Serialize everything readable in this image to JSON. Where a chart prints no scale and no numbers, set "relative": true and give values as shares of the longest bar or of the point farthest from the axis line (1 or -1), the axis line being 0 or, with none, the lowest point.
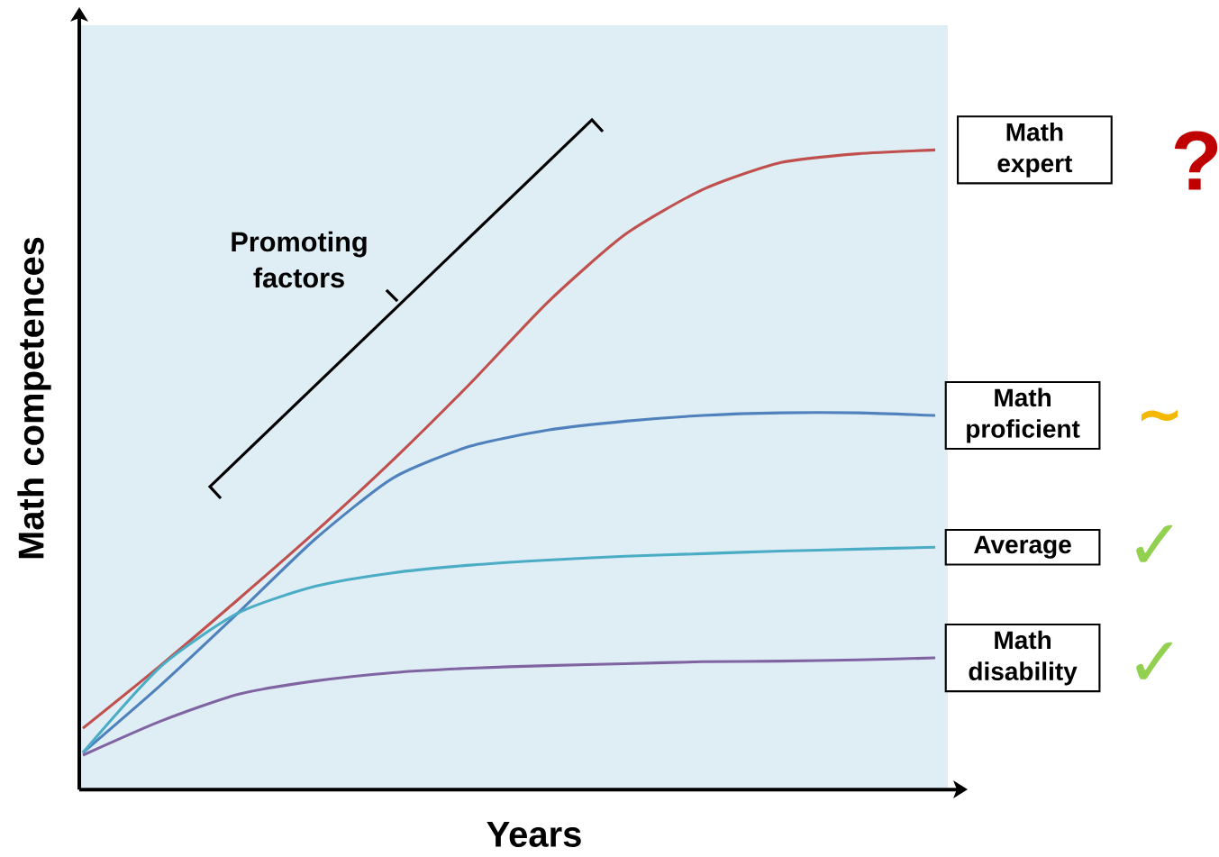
{
  "chart_data": {
    "type": "line",
    "relative": true,
    "xlabel": "Years",
    "ylabel": "Math competences",
    "categories": [
      null,
      null,
      null,
      null,
      null,
      null,
      null,
      null,
      null,
      null,
      null,
      null
    ],
    "series": [
      {
        "name": "Math expert",
        "color": "#c0504d",
        "values": [
          0.096,
          0.194,
          0.297,
          0.403,
          0.515,
          0.635,
          0.762,
          0.868,
          0.938,
          0.98,
          0.994,
          1.0
        ]
      },
      {
        "name": "Math proficient",
        "color": "#4f81bd",
        "values": [
          0.058,
          0.163,
          0.276,
          0.392,
          0.487,
          0.537,
          0.562,
          0.576,
          0.585,
          0.589,
          0.589,
          0.585
        ]
      },
      {
        "name": "Average",
        "color": "#4bacc6",
        "values": [
          0.058,
          0.192,
          0.276,
          0.318,
          0.339,
          0.351,
          0.359,
          0.365,
          0.369,
          0.373,
          0.376,
          0.379
        ]
      },
      {
        "name": "Math disability",
        "color": "#8064a2",
        "values": [
          0.054,
          0.107,
          0.149,
          0.17,
          0.183,
          0.19,
          0.194,
          0.197,
          0.2,
          0.201,
          0.203,
          0.206
        ]
      }
    ],
    "annotations": [
      "Promoting factors",
      "?",
      "~",
      "✓",
      "✓"
    ]
  }
}
